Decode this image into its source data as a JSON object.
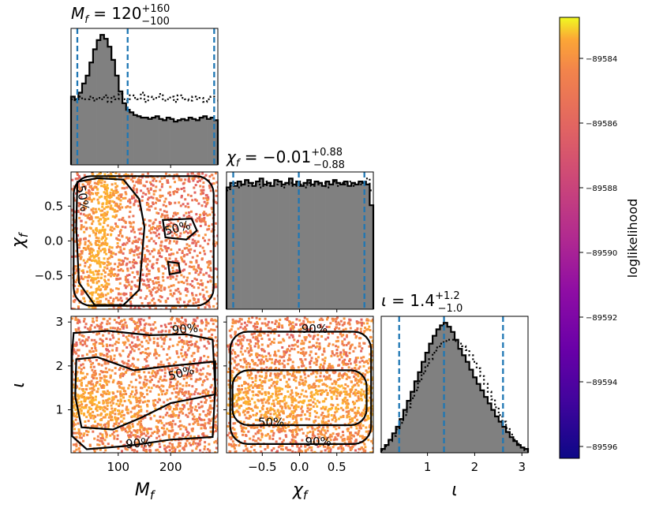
{
  "chart_data": {
    "type": "corner",
    "colorbar": {
      "label": "loglikelihood",
      "ticks": [
        "−89584",
        "−89586",
        "−89588",
        "−89590",
        "−89592",
        "−89594",
        "−89596"
      ],
      "colormap": "plasma"
    },
    "params": [
      {
        "symbol": "M",
        "subscript": "f",
        "name": "M_f",
        "median": "120",
        "upper": "+160",
        "lower": "−100",
        "range": [
          10,
          290
        ],
        "ticks": [
          "100",
          "200"
        ],
        "tick_values": [
          100,
          200
        ],
        "quantiles": [
          22,
          118,
          283
        ]
      },
      {
        "symbol": "χ",
        "subscript": "f",
        "name": "χ_f",
        "median": "−0.01",
        "upper": "+0.88",
        "lower": "−0.88",
        "range": [
          -0.98,
          0.99
        ],
        "ticks": [
          "−0.5",
          "0.0",
          "0.5"
        ],
        "tick_values": [
          -0.5,
          0.0,
          0.5
        ],
        "quantiles": [
          -0.89,
          -0.01,
          0.87
        ]
      },
      {
        "symbol": "ι",
        "subscript": "",
        "name": "ι",
        "median": "1.4",
        "upper": "+1.2",
        "lower": "−1.0",
        "range": [
          0.02,
          3.13
        ],
        "ticks": [
          "1",
          "2",
          "3"
        ],
        "tick_values": [
          1,
          2,
          3
        ],
        "quantiles": [
          0.4,
          1.35,
          2.6
        ]
      }
    ],
    "histograms": [
      {
        "param": "M_f",
        "solid": [
          0.52,
          0.5,
          0.55,
          0.62,
          0.68,
          0.78,
          0.88,
          0.95,
          0.99,
          0.96,
          0.9,
          0.8,
          0.68,
          0.56,
          0.47,
          0.42,
          0.4,
          0.38,
          0.37,
          0.36,
          0.36,
          0.35,
          0.36,
          0.37,
          0.35,
          0.34,
          0.36,
          0.35,
          0.33,
          0.34,
          0.35,
          0.34,
          0.36,
          0.35,
          0.34,
          0.36,
          0.37,
          0.35,
          0.36,
          0.34
        ],
        "prior": [
          0.5,
          0.48,
          0.52,
          0.5,
          0.5,
          0.52,
          0.49,
          0.51,
          0.5,
          0.53,
          0.48,
          0.52,
          0.5,
          0.54,
          0.5,
          0.49,
          0.53,
          0.51,
          0.5,
          0.55,
          0.48,
          0.52,
          0.5,
          0.51,
          0.54,
          0.49,
          0.5,
          0.52,
          0.48,
          0.53,
          0.51,
          0.5,
          0.49,
          0.52,
          0.5,
          0.51,
          0.48,
          0.5,
          0.52,
          0.49
        ]
      },
      {
        "param": "χ_f",
        "solid": [
          0.82,
          0.85,
          0.83,
          0.86,
          0.84,
          0.87,
          0.85,
          0.83,
          0.86,
          0.88,
          0.84,
          0.85,
          0.83,
          0.87,
          0.86,
          0.84,
          0.85,
          0.88,
          0.84,
          0.86,
          0.83,
          0.85,
          0.87,
          0.84,
          0.86,
          0.85,
          0.83,
          0.86,
          0.84,
          0.87,
          0.85,
          0.84,
          0.86,
          0.83,
          0.85,
          0.84,
          0.86,
          0.85,
          0.84,
          0.7
        ],
        "prior": [
          0.8,
          0.83,
          0.85,
          0.82,
          0.84,
          0.86,
          0.83,
          0.85,
          0.84,
          0.82,
          0.86,
          0.83,
          0.85,
          0.84,
          0.86,
          0.82,
          0.84,
          0.85,
          0.83,
          0.86,
          0.84,
          0.82,
          0.85,
          0.83,
          0.86,
          0.84,
          0.85,
          0.82,
          0.84,
          0.86,
          0.83,
          0.85,
          0.84,
          0.86,
          0.83,
          0.85,
          0.84,
          0.86,
          0.88,
          0.8
        ]
      },
      {
        "param": "ι",
        "solid": [
          0.03,
          0.06,
          0.1,
          0.15,
          0.2,
          0.26,
          0.33,
          0.4,
          0.47,
          0.55,
          0.62,
          0.7,
          0.77,
          0.84,
          0.9,
          0.95,
          0.98,
          1.0,
          0.97,
          0.93,
          0.87,
          0.8,
          0.75,
          0.7,
          0.64,
          0.58,
          0.53,
          0.48,
          0.43,
          0.38,
          0.33,
          0.28,
          0.24,
          0.2,
          0.16,
          0.12,
          0.09,
          0.06,
          0.04,
          0.03
        ],
        "prior": [
          0.02,
          0.05,
          0.09,
          0.13,
          0.18,
          0.23,
          0.29,
          0.35,
          0.42,
          0.48,
          0.55,
          0.61,
          0.67,
          0.72,
          0.77,
          0.81,
          0.84,
          0.86,
          0.87,
          0.87,
          0.86,
          0.84,
          0.82,
          0.79,
          0.75,
          0.7,
          0.65,
          0.59,
          0.53,
          0.47,
          0.41,
          0.35,
          0.29,
          0.24,
          0.19,
          0.14,
          0.1,
          0.07,
          0.04,
          0.02
        ]
      }
    ],
    "contour_labels": [
      "50%",
      "90%"
    ]
  },
  "colors": {
    "hist_fill": "#808080",
    "quantile_line": "#1f77b4",
    "contour": "#000000",
    "scatter_bg": "#d9307a"
  }
}
